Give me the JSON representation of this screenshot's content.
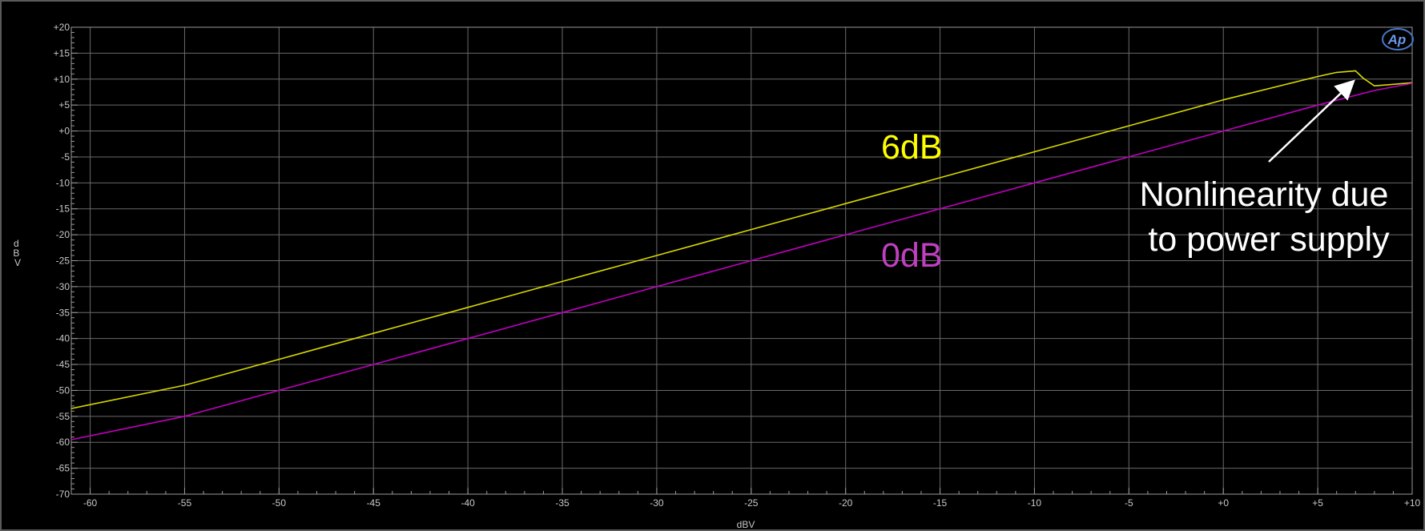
{
  "chart_data": {
    "type": "line",
    "xlabel": "dBV",
    "ylabel": "dBV",
    "xlim": [
      -61,
      10
    ],
    "ylim": [
      -70,
      20
    ],
    "grid": true,
    "xticks": [
      "-60",
      "-55",
      "-50",
      "-45",
      "-40",
      "-35",
      "-30",
      "-25",
      "-20",
      "-15",
      "-10",
      "-5",
      "+0",
      "+5",
      "+10"
    ],
    "xtick_values": [
      -60,
      -55,
      -50,
      -45,
      -40,
      -35,
      -30,
      -25,
      -20,
      -15,
      -10,
      -5,
      0,
      5,
      10
    ],
    "yticks": [
      "+20",
      "+15",
      "+10",
      "+5",
      "+0",
      "-5",
      "-10",
      "-15",
      "-20",
      "-25",
      "-30",
      "-35",
      "-40",
      "-45",
      "-50",
      "-55",
      "-60",
      "-65",
      "-70"
    ],
    "ytick_values": [
      20,
      15,
      10,
      5,
      0,
      -5,
      -10,
      -15,
      -20,
      -25,
      -30,
      -35,
      -40,
      -45,
      -50,
      -55,
      -60,
      -65,
      -70
    ],
    "series": [
      {
        "name": "6dB",
        "color": "#d8d800",
        "x": [
          -61,
          -55,
          -50,
          -45,
          -40,
          -35,
          -30,
          -25,
          -20,
          -15,
          -10,
          -5,
          0,
          5,
          6,
          7,
          7.4,
          8,
          9,
          10
        ],
        "y": [
          -53.5,
          -49,
          -44,
          -39,
          -34,
          -29,
          -24,
          -19,
          -14,
          -9,
          -4,
          1,
          6,
          10.5,
          11.3,
          11.6,
          10.2,
          8.7,
          9,
          9.3
        ]
      },
      {
        "name": "0dB",
        "color": "#c000c0",
        "x": [
          -61,
          -55,
          -50,
          -45,
          -40,
          -35,
          -30,
          -25,
          -20,
          -15,
          -10,
          -5,
          0,
          5,
          8,
          10
        ],
        "y": [
          -59.5,
          -55,
          -50,
          -45,
          -40,
          -35,
          -30,
          -25,
          -20,
          -15,
          -10,
          -5,
          0,
          5,
          7.8,
          9.2
        ]
      }
    ],
    "annotations": [
      {
        "text": "6dB",
        "color": "#ffff00"
      },
      {
        "text": "0dB",
        "color": "#c040c0"
      },
      {
        "lines": [
          "Nonlinearity due",
          "to power supply"
        ],
        "color": "#ffffff",
        "arrow_to": {
          "x": 7,
          "y": 10
        }
      }
    ]
  },
  "logo_text": "Ap",
  "colors": {
    "background": "#000000",
    "grid": "#6a6a6a",
    "axis": "#9a9a9a",
    "tick_text": "#c8c8c8",
    "border": "#5a5a5a",
    "logo": "#4a78c8"
  }
}
